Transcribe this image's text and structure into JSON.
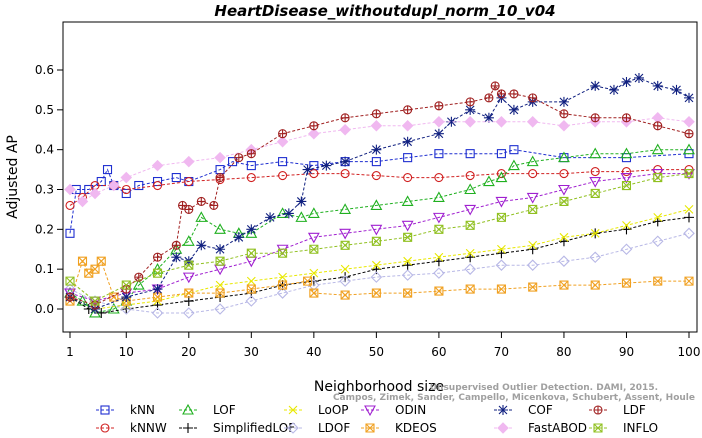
{
  "chart_data": {
    "type": "line",
    "title": "HeartDisease_withoutdupl_norm_10_v04",
    "xlabel": "Neighborhood size",
    "ylabel": "Adjusted AP",
    "xlim": [
      1,
      100
    ],
    "ylim": [
      -0.03,
      0.6
    ],
    "x_ticks": [
      1,
      10,
      20,
      30,
      40,
      50,
      60,
      70,
      80,
      90,
      100
    ],
    "y_ticks": [
      0.0,
      0.1,
      0.2,
      0.3,
      0.4,
      0.5,
      0.6
    ],
    "y_tick_labels": [
      "0.0",
      "0.1",
      "0.2",
      "0.3",
      "0.4",
      "0.5",
      "0.6"
    ],
    "grid": false,
    "legend_position": "bottom",
    "credit_lines": [
      "Campos, Zimek, Sander, Campello, Micenkova, Schubert, Assent, Houle",
      "Unsupervised Outlier Detection. DAMI, 2015."
    ],
    "series": [
      {
        "name": "kNN",
        "color": "#1f2fd0",
        "marker": "square",
        "points": [
          [
            1,
            0.19
          ],
          [
            2,
            0.3
          ],
          [
            4,
            0.3
          ],
          [
            6,
            0.32
          ],
          [
            7,
            0.35
          ],
          [
            8,
            0.31
          ],
          [
            10,
            0.29
          ],
          [
            12,
            0.31
          ],
          [
            15,
            0.32
          ],
          [
            18,
            0.33
          ],
          [
            20,
            0.32
          ],
          [
            25,
            0.35
          ],
          [
            27,
            0.37
          ],
          [
            30,
            0.36
          ],
          [
            35,
            0.37
          ],
          [
            40,
            0.36
          ],
          [
            45,
            0.37
          ],
          [
            50,
            0.37
          ],
          [
            55,
            0.38
          ],
          [
            60,
            0.39
          ],
          [
            65,
            0.39
          ],
          [
            70,
            0.39
          ],
          [
            72,
            0.4
          ],
          [
            80,
            0.38
          ],
          [
            90,
            0.38
          ],
          [
            100,
            0.39
          ]
        ]
      },
      {
        "name": "kNNW",
        "color": "#d02020",
        "marker": "circle",
        "points": [
          [
            1,
            0.26
          ],
          [
            3,
            0.28
          ],
          [
            5,
            0.31
          ],
          [
            8,
            0.31
          ],
          [
            10,
            0.3
          ],
          [
            15,
            0.31
          ],
          [
            20,
            0.32
          ],
          [
            25,
            0.325
          ],
          [
            30,
            0.33
          ],
          [
            35,
            0.335
          ],
          [
            40,
            0.34
          ],
          [
            45,
            0.34
          ],
          [
            50,
            0.335
          ],
          [
            55,
            0.33
          ],
          [
            60,
            0.33
          ],
          [
            65,
            0.335
          ],
          [
            70,
            0.34
          ],
          [
            75,
            0.34
          ],
          [
            80,
            0.34
          ],
          [
            85,
            0.345
          ],
          [
            90,
            0.345
          ],
          [
            95,
            0.35
          ],
          [
            100,
            0.35
          ]
        ]
      },
      {
        "name": "LOF",
        "color": "#20b020",
        "marker": "triangle-up",
        "points": [
          [
            1,
            0.04
          ],
          [
            3,
            0.02
          ],
          [
            5,
            -0.01
          ],
          [
            8,
            0.0
          ],
          [
            10,
            0.02
          ],
          [
            12,
            0.06
          ],
          [
            15,
            0.1
          ],
          [
            18,
            0.15
          ],
          [
            20,
            0.17
          ],
          [
            22,
            0.23
          ],
          [
            25,
            0.2
          ],
          [
            28,
            0.19
          ],
          [
            30,
            0.19
          ],
          [
            35,
            0.24
          ],
          [
            38,
            0.23
          ],
          [
            40,
            0.24
          ],
          [
            45,
            0.25
          ],
          [
            50,
            0.26
          ],
          [
            55,
            0.27
          ],
          [
            60,
            0.28
          ],
          [
            65,
            0.3
          ],
          [
            68,
            0.32
          ],
          [
            70,
            0.33
          ],
          [
            72,
            0.36
          ],
          [
            75,
            0.37
          ],
          [
            80,
            0.38
          ],
          [
            85,
            0.39
          ],
          [
            90,
            0.39
          ],
          [
            95,
            0.4
          ],
          [
            100,
            0.4
          ]
        ]
      },
      {
        "name": "SimplifiedLOF",
        "color": "#000000",
        "marker": "plus",
        "points": [
          [
            1,
            0.03
          ],
          [
            4,
            0.0
          ],
          [
            6,
            -0.01
          ],
          [
            10,
            0.0
          ],
          [
            15,
            0.01
          ],
          [
            20,
            0.02
          ],
          [
            25,
            0.03
          ],
          [
            30,
            0.04
          ],
          [
            35,
            0.06
          ],
          [
            40,
            0.07
          ],
          [
            45,
            0.08
          ],
          [
            50,
            0.1
          ],
          [
            55,
            0.11
          ],
          [
            60,
            0.12
          ],
          [
            65,
            0.13
          ],
          [
            70,
            0.14
          ],
          [
            75,
            0.15
          ],
          [
            80,
            0.17
          ],
          [
            85,
            0.19
          ],
          [
            90,
            0.2
          ],
          [
            95,
            0.22
          ],
          [
            100,
            0.23
          ]
        ]
      },
      {
        "name": "LoOP",
        "color": "#e8e800",
        "marker": "cross",
        "points": [
          [
            1,
            0.03
          ],
          [
            5,
            0.0
          ],
          [
            10,
            0.01
          ],
          [
            15,
            0.02
          ],
          [
            20,
            0.04
          ],
          [
            25,
            0.06
          ],
          [
            30,
            0.07
          ],
          [
            35,
            0.08
          ],
          [
            40,
            0.09
          ],
          [
            45,
            0.1
          ],
          [
            50,
            0.11
          ],
          [
            55,
            0.12
          ],
          [
            60,
            0.13
          ],
          [
            65,
            0.14
          ],
          [
            70,
            0.15
          ],
          [
            75,
            0.16
          ],
          [
            80,
            0.18
          ],
          [
            85,
            0.19
          ],
          [
            90,
            0.21
          ],
          [
            95,
            0.23
          ],
          [
            100,
            0.25
          ]
        ]
      },
      {
        "name": "LDOF",
        "color": "#b8b8e6",
        "marker": "diamond",
        "points": [
          [
            1,
            0.05
          ],
          [
            5,
            0.02
          ],
          [
            10,
            0.0
          ],
          [
            15,
            -0.01
          ],
          [
            20,
            -0.01
          ],
          [
            25,
            0.0
          ],
          [
            30,
            0.02
          ],
          [
            35,
            0.04
          ],
          [
            40,
            0.06
          ],
          [
            45,
            0.07
          ],
          [
            50,
            0.08
          ],
          [
            55,
            0.085
          ],
          [
            60,
            0.09
          ],
          [
            65,
            0.1
          ],
          [
            70,
            0.11
          ],
          [
            75,
            0.11
          ],
          [
            80,
            0.12
          ],
          [
            85,
            0.13
          ],
          [
            90,
            0.15
          ],
          [
            95,
            0.17
          ],
          [
            100,
            0.19
          ]
        ]
      },
      {
        "name": "ODIN",
        "color": "#a020d0",
        "marker": "triangle-down",
        "points": [
          [
            1,
            0.04
          ],
          [
            5,
            0.02
          ],
          [
            10,
            0.04
          ],
          [
            15,
            0.05
          ],
          [
            20,
            0.08
          ],
          [
            25,
            0.1
          ],
          [
            30,
            0.12
          ],
          [
            35,
            0.15
          ],
          [
            40,
            0.18
          ],
          [
            45,
            0.19
          ],
          [
            50,
            0.2
          ],
          [
            55,
            0.21
          ],
          [
            60,
            0.23
          ],
          [
            65,
            0.25
          ],
          [
            70,
            0.27
          ],
          [
            75,
            0.28
          ],
          [
            80,
            0.3
          ],
          [
            85,
            0.32
          ],
          [
            90,
            0.33
          ],
          [
            95,
            0.34
          ],
          [
            100,
            0.34
          ]
        ]
      },
      {
        "name": "KDEOS",
        "color": "#f0a020",
        "marker": "box-x",
        "points": [
          [
            1,
            0.02
          ],
          [
            3,
            0.12
          ],
          [
            4,
            0.09
          ],
          [
            5,
            0.1
          ],
          [
            6,
            0.12
          ],
          [
            8,
            0.03
          ],
          [
            10,
            0.02
          ],
          [
            15,
            0.03
          ],
          [
            20,
            0.04
          ],
          [
            25,
            0.04
          ],
          [
            30,
            0.05
          ],
          [
            35,
            0.06
          ],
          [
            39,
            0.07
          ],
          [
            40,
            0.04
          ],
          [
            45,
            0.035
          ],
          [
            50,
            0.04
          ],
          [
            55,
            0.04
          ],
          [
            60,
            0.045
          ],
          [
            65,
            0.05
          ],
          [
            70,
            0.05
          ],
          [
            75,
            0.055
          ],
          [
            80,
            0.06
          ],
          [
            85,
            0.06
          ],
          [
            90,
            0.065
          ],
          [
            95,
            0.07
          ],
          [
            100,
            0.07
          ]
        ]
      },
      {
        "name": "COF",
        "color": "#102080",
        "marker": "star",
        "points": [
          [
            1,
            0.03
          ],
          [
            5,
            0.0
          ],
          [
            10,
            0.03
          ],
          [
            15,
            0.05
          ],
          [
            18,
            0.13
          ],
          [
            20,
            0.12
          ],
          [
            22,
            0.16
          ],
          [
            25,
            0.15
          ],
          [
            28,
            0.18
          ],
          [
            30,
            0.2
          ],
          [
            33,
            0.23
          ],
          [
            36,
            0.24
          ],
          [
            38,
            0.27
          ],
          [
            39,
            0.35
          ],
          [
            42,
            0.36
          ],
          [
            45,
            0.37
          ],
          [
            50,
            0.4
          ],
          [
            55,
            0.42
          ],
          [
            60,
            0.44
          ],
          [
            62,
            0.47
          ],
          [
            65,
            0.5
          ],
          [
            68,
            0.48
          ],
          [
            70,
            0.53
          ],
          [
            72,
            0.5
          ],
          [
            75,
            0.52
          ],
          [
            80,
            0.52
          ],
          [
            85,
            0.56
          ],
          [
            88,
            0.55
          ],
          [
            90,
            0.57
          ],
          [
            92,
            0.58
          ],
          [
            95,
            0.56
          ],
          [
            98,
            0.55
          ],
          [
            100,
            0.53
          ]
        ]
      },
      {
        "name": "FastABOD",
        "color": "#f0b8f0",
        "marker": "diamond-filled",
        "points": [
          [
            1,
            0.3
          ],
          [
            3,
            0.27
          ],
          [
            5,
            0.29
          ],
          [
            8,
            0.31
          ],
          [
            10,
            0.33
          ],
          [
            15,
            0.36
          ],
          [
            20,
            0.37
          ],
          [
            25,
            0.38
          ],
          [
            30,
            0.4
          ],
          [
            35,
            0.42
          ],
          [
            40,
            0.44
          ],
          [
            45,
            0.45
          ],
          [
            50,
            0.46
          ],
          [
            55,
            0.46
          ],
          [
            60,
            0.47
          ],
          [
            65,
            0.47
          ],
          [
            70,
            0.47
          ],
          [
            75,
            0.47
          ],
          [
            80,
            0.46
          ],
          [
            85,
            0.47
          ],
          [
            90,
            0.47
          ],
          [
            95,
            0.48
          ],
          [
            100,
            0.47
          ]
        ]
      },
      {
        "name": "LDF",
        "color": "#a02020",
        "marker": "circle-plus",
        "points": [
          [
            1,
            0.03
          ],
          [
            5,
            0.01
          ],
          [
            10,
            0.05
          ],
          [
            12,
            0.08
          ],
          [
            15,
            0.13
          ],
          [
            18,
            0.16
          ],
          [
            19,
            0.26
          ],
          [
            20,
            0.25
          ],
          [
            22,
            0.27
          ],
          [
            24,
            0.26
          ],
          [
            25,
            0.33
          ],
          [
            28,
            0.38
          ],
          [
            30,
            0.39
          ],
          [
            35,
            0.44
          ],
          [
            40,
            0.46
          ],
          [
            45,
            0.48
          ],
          [
            50,
            0.49
          ],
          [
            55,
            0.5
          ],
          [
            60,
            0.51
          ],
          [
            65,
            0.52
          ],
          [
            68,
            0.53
          ],
          [
            69,
            0.56
          ],
          [
            70,
            0.54
          ],
          [
            72,
            0.54
          ],
          [
            75,
            0.53
          ],
          [
            80,
            0.49
          ],
          [
            85,
            0.48
          ],
          [
            90,
            0.48
          ],
          [
            95,
            0.46
          ],
          [
            100,
            0.44
          ]
        ]
      },
      {
        "name": "INFLO",
        "color": "#90c020",
        "marker": "box-x",
        "points": [
          [
            1,
            0.07
          ],
          [
            5,
            0.02
          ],
          [
            10,
            0.06
          ],
          [
            15,
            0.09
          ],
          [
            20,
            0.11
          ],
          [
            25,
            0.12
          ],
          [
            30,
            0.14
          ],
          [
            35,
            0.14
          ],
          [
            40,
            0.15
          ],
          [
            45,
            0.16
          ],
          [
            50,
            0.17
          ],
          [
            55,
            0.18
          ],
          [
            60,
            0.2
          ],
          [
            65,
            0.21
          ],
          [
            70,
            0.23
          ],
          [
            75,
            0.25
          ],
          [
            80,
            0.27
          ],
          [
            85,
            0.29
          ],
          [
            90,
            0.31
          ],
          [
            95,
            0.33
          ],
          [
            100,
            0.34
          ]
        ]
      }
    ]
  }
}
